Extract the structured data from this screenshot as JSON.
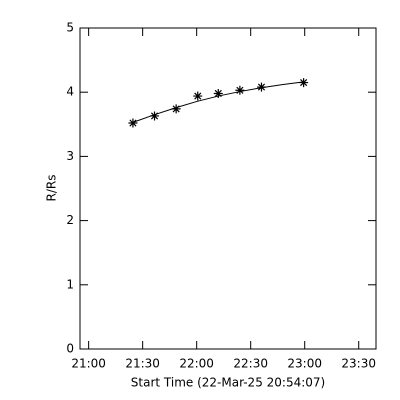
{
  "chart_data": {
    "type": "scatter",
    "x_label": "Start Time (22-Mar-25 20:54:07)",
    "y_label": "R/Rs",
    "xlim": [
      20.92,
      23.66
    ],
    "ylim": [
      0,
      5
    ],
    "xticks": [
      {
        "value": 21,
        "label": "21:00"
      },
      {
        "value": 21.5,
        "label": "21:30"
      },
      {
        "value": 22,
        "label": "22:00"
      },
      {
        "value": 22.5,
        "label": "22:30"
      },
      {
        "value": 23,
        "label": "23:00"
      },
      {
        "value": 23.5,
        "label": "23:30"
      }
    ],
    "yticks": [
      0,
      1,
      2,
      3,
      4,
      5
    ],
    "color": "#000000",
    "series": [
      {
        "marker": "asterisk",
        "x": [
          21.41,
          21.61,
          21.81,
          22.01,
          22.2,
          22.4,
          22.6,
          22.99
        ],
        "values": [
          3.52,
          3.63,
          3.74,
          3.94,
          3.98,
          4.03,
          4.08,
          4.15
        ]
      },
      {
        "marker": "line",
        "x": [
          21.41,
          21.61,
          21.81,
          22.01,
          22.2,
          22.4,
          22.6,
          22.8,
          22.99
        ],
        "values": [
          3.53,
          3.65,
          3.76,
          3.86,
          3.94,
          4.01,
          4.07,
          4.12,
          4.16
        ]
      }
    ]
  }
}
